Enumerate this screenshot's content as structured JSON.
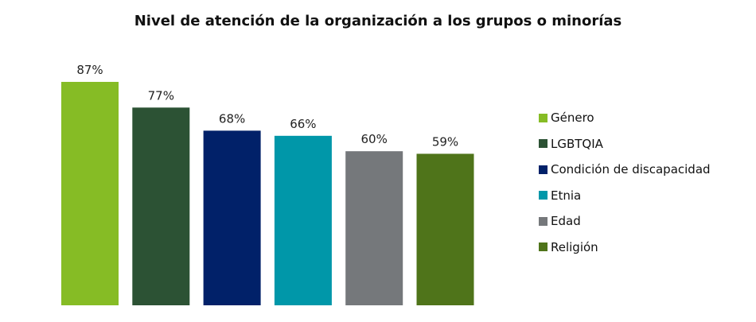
{
  "chart_data": {
    "type": "bar",
    "title": "Nivel de atención de la organización a los grupos o minorías",
    "categories": [
      "Género",
      "LGBTQIA",
      "Condición de discapacidad",
      "Etnia",
      "Edad",
      "Religión"
    ],
    "values": [
      87,
      77,
      68,
      66,
      60,
      59
    ],
    "value_labels": [
      "87%",
      "77%",
      "68%",
      "66%",
      "60%",
      "59%"
    ],
    "colors": [
      "#86bc25",
      "#2c5234",
      "#012169",
      "#0097a9",
      "#75787b",
      "#4f741a"
    ],
    "ylim": [
      0,
      100
    ],
    "grid": false,
    "legend_position": "right",
    "xlabel": "",
    "ylabel": ""
  }
}
